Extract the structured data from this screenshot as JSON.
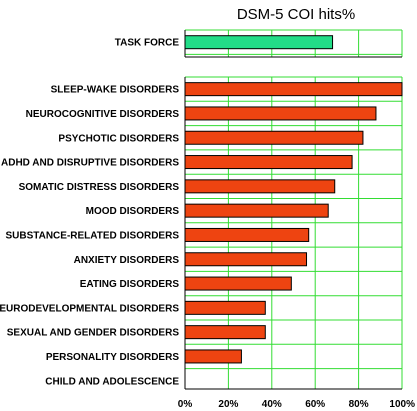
{
  "chart_data": {
    "type": "bar",
    "orientation": "horizontal",
    "title": "DSM-5 COI hits%",
    "xlim": [
      0,
      100
    ],
    "x_ticks": [
      "0%",
      "20%",
      "40%",
      "60%",
      "80%",
      "100%"
    ],
    "grid": true,
    "panels": [
      {
        "categories": [
          "TASK FORCE"
        ],
        "values": [
          68
        ],
        "color": "#22dd88"
      },
      {
        "categories": [
          "SLEEP-WAKE DISORDERS",
          "NEUROCOGNITIVE DISORDERS",
          "PSYCHOTIC DISORDERS",
          "ADHD AND DISRUPTIVE DISORDERS",
          "SOMATIC DISTRESS DISORDERS",
          "MOOD DISORDERS",
          "SUBSTANCE-RELATED DISORDERS",
          "ANXIETY DISORDERS",
          "EATING DISORDERS",
          "NEURODEVELOPMENTAL DISORDERS",
          "SEXUAL AND GENDER DISORDERS",
          "PERSONALITY DISORDERS",
          "CHILD AND ADOLESCENCE"
        ],
        "values": [
          100,
          88,
          82,
          77,
          69,
          66,
          57,
          56,
          49,
          37,
          37,
          26,
          0
        ],
        "color": "#ee4411"
      }
    ]
  }
}
